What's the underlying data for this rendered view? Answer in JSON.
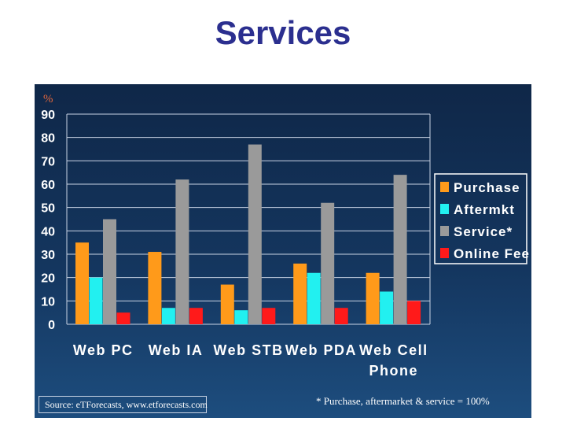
{
  "page": {
    "title": "Services"
  },
  "source": "Source: eTForecasts, www.etforecasts.com",
  "footnote": "* Purchase, aftermarket & service = 100%",
  "colors": {
    "purchase": "#ff9a1a",
    "aftermkt": "#22f0f0",
    "service": "#9a9a9a",
    "online_fee": "#ff1a1a"
  },
  "chart_data": {
    "type": "bar",
    "title": "",
    "unit_label": "%",
    "xlabel": "",
    "ylabel": "",
    "ylim": [
      0,
      90
    ],
    "yticks": [
      "0",
      "10",
      "20",
      "30",
      "40",
      "50",
      "60",
      "70",
      "80",
      "90"
    ],
    "categories": [
      "Web PC",
      "Web IA",
      "Web STB",
      "Web PDA",
      "Web Cell Phone"
    ],
    "category_lines": [
      [
        "Web PC"
      ],
      [
        "Web IA"
      ],
      [
        "Web STB"
      ],
      [
        "Web PDA"
      ],
      [
        "Web Cell",
        "Phone"
      ]
    ],
    "grid": "horizontal",
    "legend_position": "right",
    "series": [
      {
        "name": "Purchase",
        "color": "#ff9a1a",
        "values": [
          35,
          31,
          17,
          26,
          22
        ]
      },
      {
        "name": "Aftermkt",
        "color": "#22f0f0",
        "values": [
          20,
          7,
          6,
          22,
          14
        ]
      },
      {
        "name": "Service*",
        "color": "#9a9a9a",
        "values": [
          45,
          62,
          77,
          52,
          64
        ]
      },
      {
        "name": "Online Fee",
        "color": "#ff1a1a",
        "values": [
          5,
          7,
          7,
          7,
          10
        ]
      }
    ]
  }
}
